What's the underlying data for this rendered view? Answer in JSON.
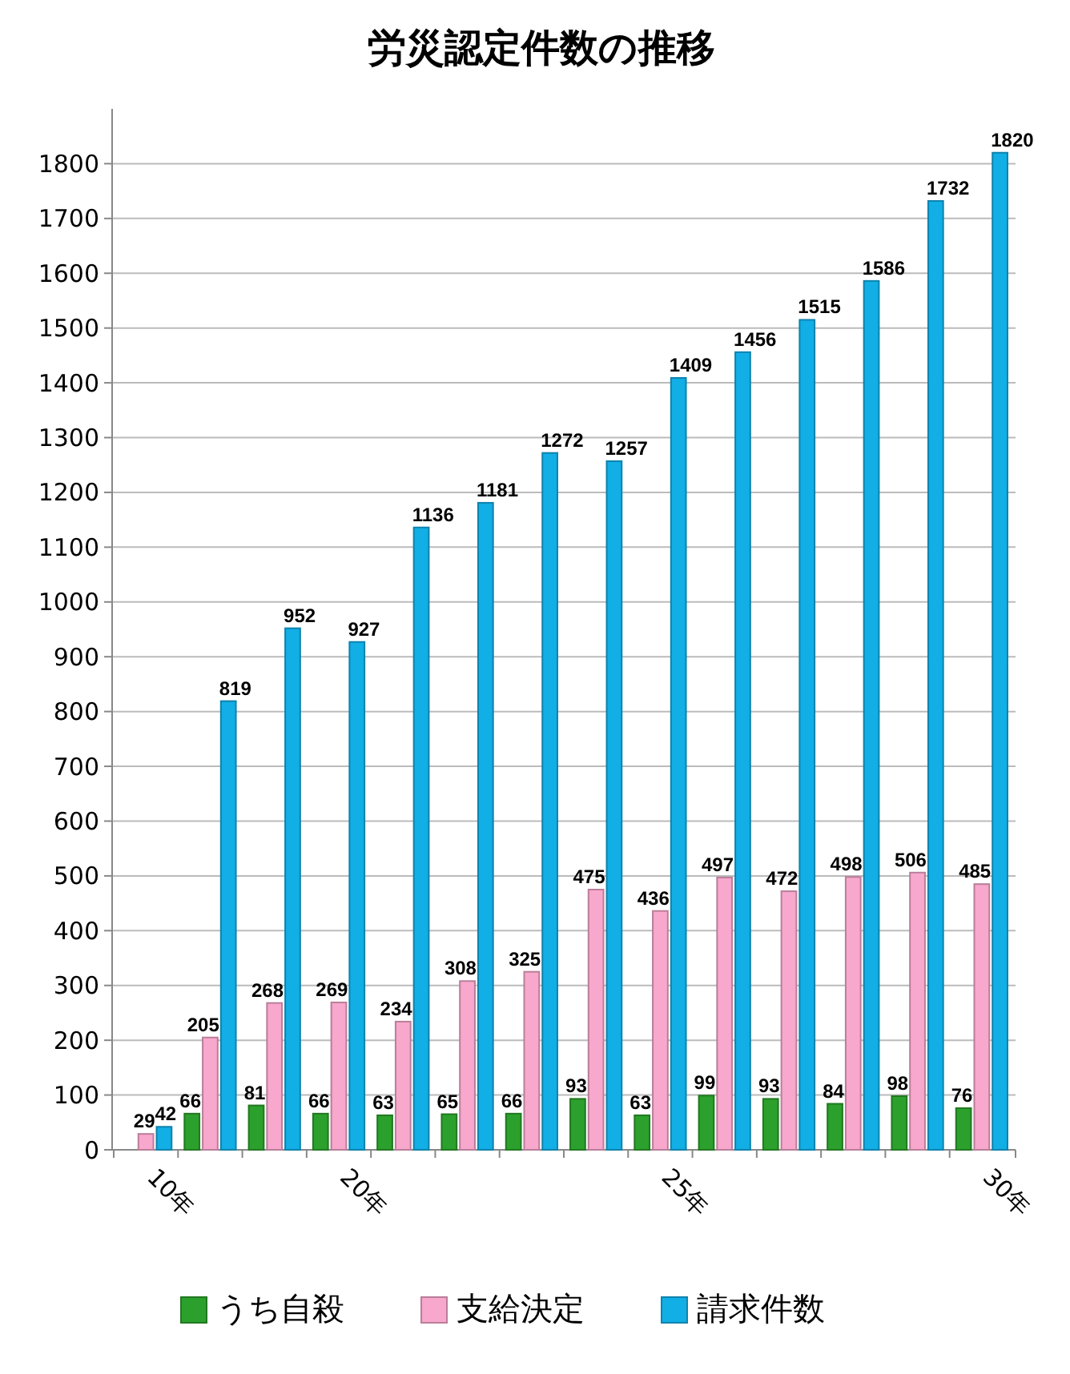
{
  "chart_data": {
    "type": "bar",
    "title": "労災認定件数の推移",
    "categories": [
      "10年",
      null,
      null,
      "20年",
      null,
      null,
      null,
      null,
      "25年",
      null,
      null,
      null,
      null,
      "30年"
    ],
    "series": [
      {
        "name": "うち自殺",
        "color": "#2ca02c",
        "values": [
          null,
          66,
          81,
          66,
          63,
          65,
          66,
          93,
          63,
          99,
          93,
          84,
          98,
          76
        ]
      },
      {
        "name": "支給決定",
        "color": "#f7a8cc",
        "values": [
          29,
          205,
          268,
          269,
          234,
          308,
          325,
          475,
          436,
          497,
          472,
          498,
          506,
          485
        ]
      },
      {
        "name": "請求件数",
        "color": "#12aee6",
        "values": [
          42,
          819,
          952,
          927,
          1136,
          1181,
          1272,
          1257,
          1409,
          1456,
          1515,
          1586,
          1732,
          1820
        ]
      }
    ],
    "ylim": [
      0,
      1900
    ],
    "yticks": [
      0,
      100,
      200,
      300,
      400,
      500,
      600,
      700,
      800,
      900,
      1000,
      1100,
      1200,
      1300,
      1400,
      1500,
      1600,
      1700,
      1800
    ],
    "grid": "y",
    "legend": "bottom",
    "data_labels": true
  }
}
